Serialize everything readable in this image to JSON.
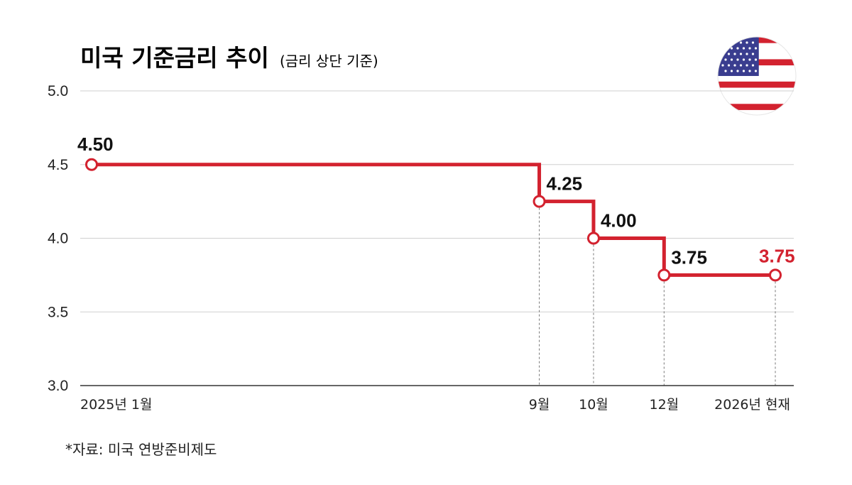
{
  "colors": {
    "line": "#d3222f",
    "grid": "#cfcfcf",
    "axis": "#333333",
    "text": "#111111",
    "highlight": "#d3222f",
    "flag_red": "#d3222f",
    "flag_blue": "#3a3d8f",
    "flag_white": "#ffffff"
  },
  "icons": {
    "flag": "us-flag-icon"
  },
  "chart_data": {
    "type": "line",
    "subtype": "step",
    "title": "미국 기준금리 추이",
    "subtitle": "(금리 상단 기준)",
    "xlabel": "",
    "ylabel": "",
    "ylim": [
      3.0,
      5.0
    ],
    "yticks": [
      "5.0",
      "4.5",
      "4.0",
      "3.5",
      "3.0"
    ],
    "grid": true,
    "categories": [
      "2025년 1월",
      "9월",
      "10월",
      "12월",
      "2026년 현재"
    ],
    "x_months": [
      0,
      8.25,
      9.25,
      10.55,
      12.6
    ],
    "values": [
      4.5,
      4.25,
      4.0,
      3.75,
      3.75
    ],
    "data_labels": [
      "4.50",
      "4.25",
      "4.00",
      "3.75",
      "3.75"
    ],
    "highlight_index": 4,
    "source": "*자료: 미국 연방준비제도"
  }
}
